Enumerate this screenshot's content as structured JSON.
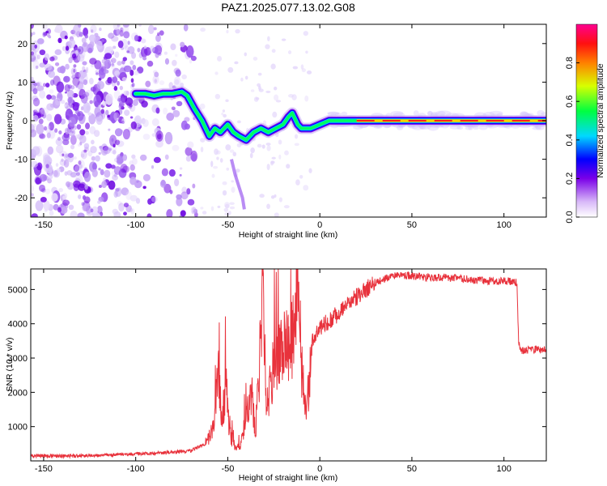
{
  "title": "PAZ1.2025.077.13.02.G08",
  "chart_data": [
    {
      "type": "heatmap",
      "xlabel": "Height of straight line (km)",
      "ylabel": "Frequency (Hz)",
      "xlim": [
        -157,
        123
      ],
      "ylim": [
        -25,
        25
      ],
      "x_ticks": [
        -150,
        -100,
        -50,
        0,
        50,
        100
      ],
      "y_ticks": [
        -20,
        -10,
        0,
        10,
        20
      ],
      "colorbar": {
        "label": "Normalized spectral amplitude",
        "range": [
          0,
          1
        ],
        "ticks": [
          0.0,
          0.2,
          0.4,
          0.6,
          0.8
        ]
      },
      "ridge": [
        {
          "x": -100,
          "y": 7
        },
        {
          "x": -95,
          "y": 7
        },
        {
          "x": -90,
          "y": 6.5
        },
        {
          "x": -85,
          "y": 7
        },
        {
          "x": -80,
          "y": 7
        },
        {
          "x": -75,
          "y": 7.5
        },
        {
          "x": -72,
          "y": 6.5
        },
        {
          "x": -68,
          "y": 3
        },
        {
          "x": -64,
          "y": 0
        },
        {
          "x": -60,
          "y": -4
        },
        {
          "x": -57,
          "y": -2
        },
        {
          "x": -54,
          "y": -3
        },
        {
          "x": -50,
          "y": -1
        },
        {
          "x": -47,
          "y": -3
        },
        {
          "x": -44,
          "y": -4
        },
        {
          "x": -40,
          "y": -5
        },
        {
          "x": -36,
          "y": -3
        },
        {
          "x": -32,
          "y": -2
        },
        {
          "x": -28,
          "y": -3
        },
        {
          "x": -24,
          "y": -2
        },
        {
          "x": -20,
          "y": -1
        },
        {
          "x": -17,
          "y": 1
        },
        {
          "x": -15,
          "y": 2
        },
        {
          "x": -12,
          "y": -1
        },
        {
          "x": -10,
          "y": -2
        },
        {
          "x": -5,
          "y": -2
        },
        {
          "x": 0,
          "y": -1
        },
        {
          "x": 5,
          "y": 0
        },
        {
          "x": 10,
          "y": 0
        },
        {
          "x": 20,
          "y": 0
        },
        {
          "x": 40,
          "y": 0
        },
        {
          "x": 60,
          "y": 0
        },
        {
          "x": 80,
          "y": 0
        },
        {
          "x": 100,
          "y": 0
        },
        {
          "x": 110,
          "y": 0
        },
        {
          "x": 123,
          "y": 0
        }
      ]
    },
    {
      "type": "line",
      "xlabel": "Height of straight line (km)",
      "ylabel": "SNR (10 * v/v)",
      "xlim": [
        -157,
        123
      ],
      "ylim": [
        0,
        5600
      ],
      "x_ticks": [
        -150,
        -100,
        -50,
        0,
        50,
        100
      ],
      "y_ticks": [
        1000,
        2000,
        3000,
        4000,
        5000
      ],
      "line_color": "#e8323c",
      "series": [
        {
          "points": [
            [
              -157,
              150
            ],
            [
              -140,
              140
            ],
            [
              -120,
              160
            ],
            [
              -100,
              200
            ],
            [
              -80,
              250
            ],
            [
              -70,
              300
            ],
            [
              -62,
              500
            ],
            [
              -58,
              900
            ],
            [
              -55,
              2500
            ],
            [
              -53,
              1200
            ],
            [
              -51,
              2300
            ],
            [
              -49,
              800
            ],
            [
              -46,
              400
            ],
            [
              -43,
              500
            ],
            [
              -40,
              1200
            ],
            [
              -37,
              2000
            ],
            [
              -35,
              800
            ],
            [
              -33,
              2500
            ],
            [
              -31,
              5000
            ],
            [
              -29,
              1500
            ],
            [
              -27,
              2200
            ],
            [
              -24,
              3000
            ],
            [
              -20,
              3400
            ],
            [
              -15,
              3600
            ],
            [
              -12,
              5500
            ],
            [
              -10,
              2800
            ],
            [
              -7,
              1500
            ],
            [
              -4,
              3600
            ],
            [
              0,
              3900
            ],
            [
              10,
              4300
            ],
            [
              20,
              4800
            ],
            [
              30,
              5200
            ],
            [
              40,
              5400
            ],
            [
              50,
              5400
            ],
            [
              60,
              5350
            ],
            [
              70,
              5350
            ],
            [
              80,
              5300
            ],
            [
              90,
              5250
            ],
            [
              100,
              5250
            ],
            [
              107,
              5200
            ],
            [
              108,
              3400
            ],
            [
              110,
              3200
            ],
            [
              115,
              3250
            ],
            [
              123,
              3250
            ]
          ]
        }
      ]
    }
  ]
}
